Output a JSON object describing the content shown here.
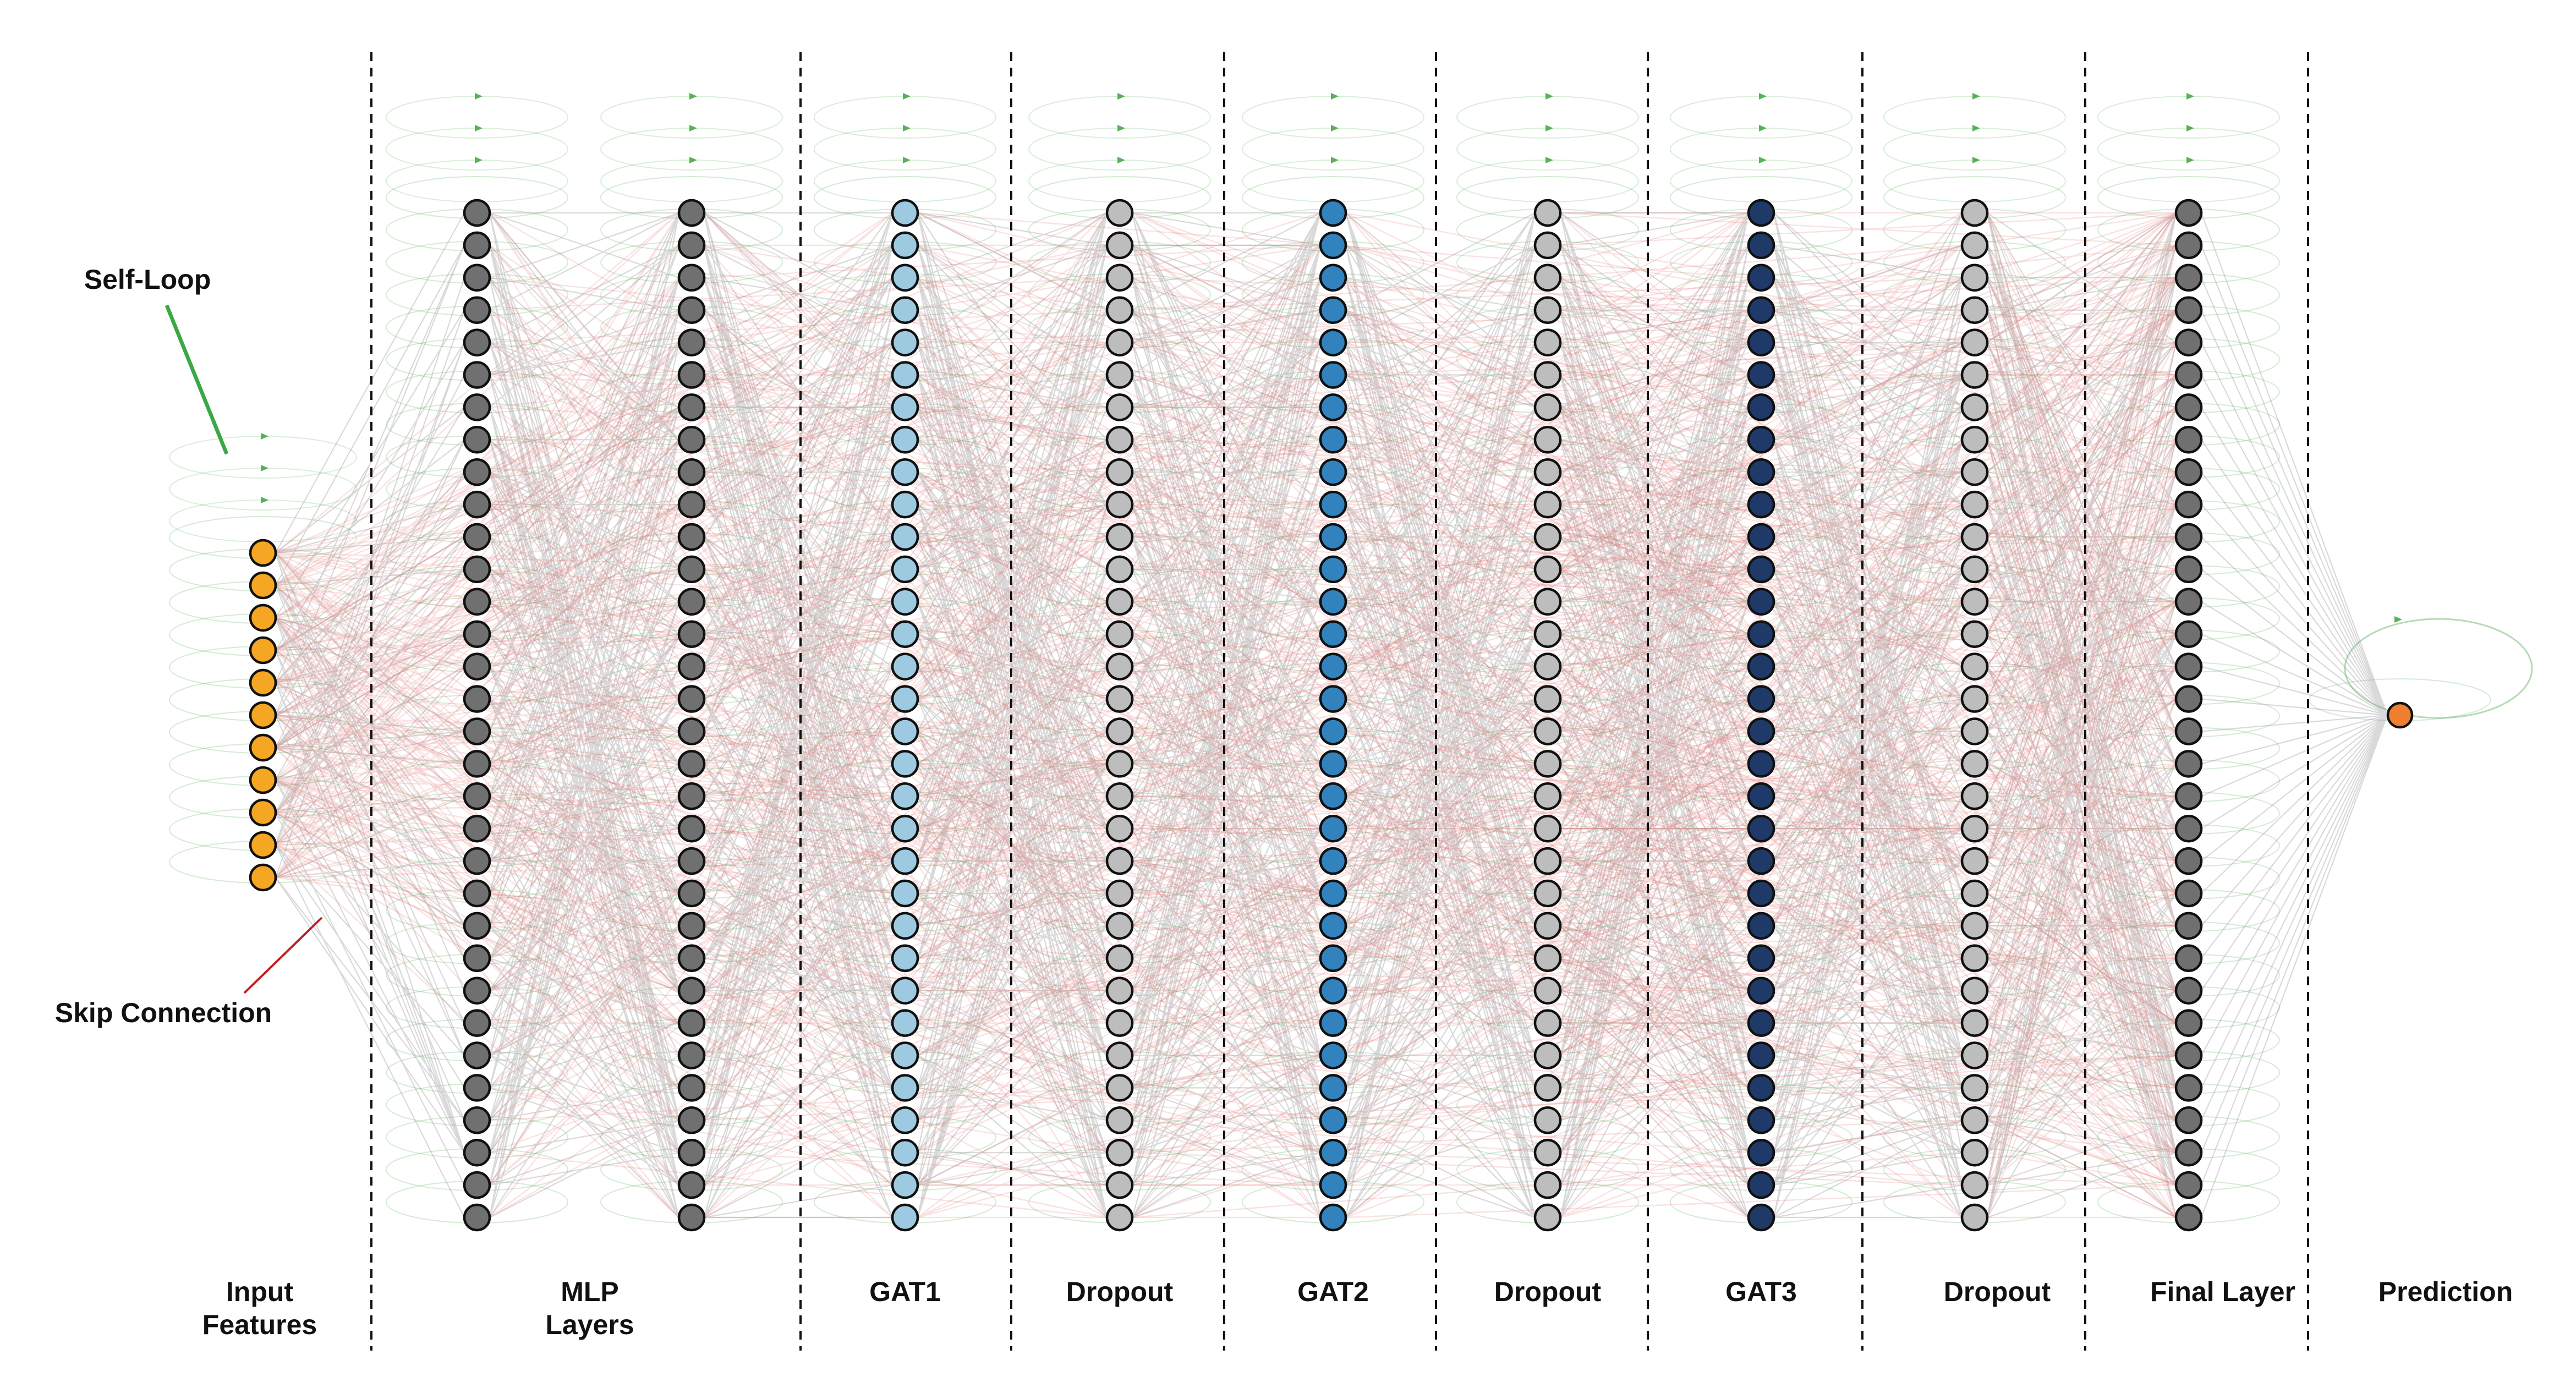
{
  "annotations": {
    "self_loop": "Self-Loop",
    "skip_connection": "Skip Connection"
  },
  "colors": {
    "input": "#f5a623",
    "mlp": "#707070",
    "gat1": "#9ecae1",
    "dropout": "#bdbdbd",
    "gat2": "#3182bd",
    "gat3": "#1f3a68",
    "final": "#707070",
    "prediction": "#f08030",
    "edge": "#888888",
    "skip": "#e06060",
    "loop": "#58b058"
  },
  "layers": [
    {
      "id": "input",
      "label": [
        "Input",
        "Features"
      ],
      "count": 11,
      "color": "#f5a623"
    },
    {
      "id": "mlp1",
      "label": [],
      "count": 32,
      "color": "#707070"
    },
    {
      "id": "mlp2",
      "label": [],
      "count": 32,
      "color": "#707070"
    },
    {
      "id": "gat1",
      "label": [
        "GAT1"
      ],
      "count": 32,
      "color": "#9ecae1"
    },
    {
      "id": "dropout1",
      "label": [
        "Dropout"
      ],
      "count": 32,
      "color": "#bdbdbd"
    },
    {
      "id": "gat2",
      "label": [
        "GAT2"
      ],
      "count": 32,
      "color": "#3182bd"
    },
    {
      "id": "dropout2",
      "label": [
        "Dropout"
      ],
      "count": 32,
      "color": "#bdbdbd"
    },
    {
      "id": "gat3",
      "label": [
        "GAT3"
      ],
      "count": 32,
      "color": "#1f3a68"
    },
    {
      "id": "dropout3",
      "label": [
        "Dropout"
      ],
      "count": 32,
      "color": "#bdbdbd"
    },
    {
      "id": "final",
      "label": [
        "Final Layer"
      ],
      "count": 32,
      "color": "#707070"
    },
    {
      "id": "prediction",
      "label": [
        "Prediction"
      ],
      "count": 1,
      "color": "#f08030"
    }
  ],
  "group_labels": [
    {
      "layers": [
        "mlp1",
        "mlp2"
      ],
      "text": [
        "MLP",
        "Layers"
      ]
    }
  ]
}
